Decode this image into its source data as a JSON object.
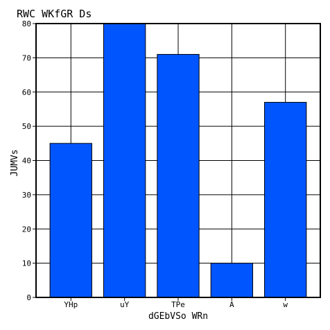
{
  "chart_data": {
    "type": "bar",
    "title": "RWC WKfGR Ds",
    "xlabel": "dGEbVSo WRn",
    "ylabel": "JUMVs",
    "categories": [
      "YHp",
      "uY",
      "TPe",
      "A",
      "w"
    ],
    "values": [
      45,
      80,
      71,
      10,
      57
    ],
    "ylim": [
      0,
      80
    ],
    "yticks": [
      0,
      10,
      20,
      30,
      40,
      50,
      60,
      70,
      80
    ],
    "grid": true,
    "bar_color": "#0055ff",
    "bar_edge_color": "#000000",
    "axis_color": "#000000",
    "grid_color": "#000000"
  }
}
